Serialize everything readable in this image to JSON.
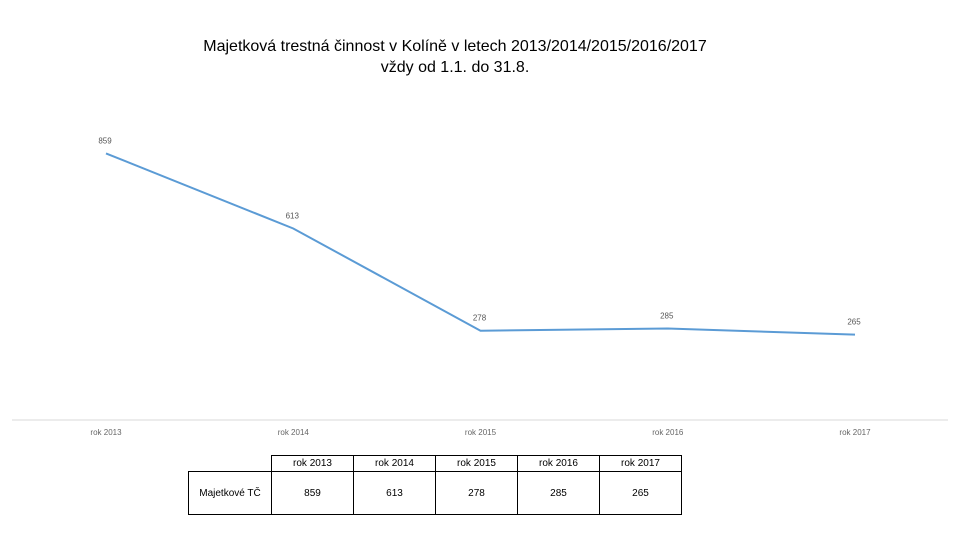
{
  "title": {
    "line1": "Majetková trestná činnost v Kolíně v letech 2013/2014/2015/2016/2017",
    "line2": "vždy od 1.1. do 31.8."
  },
  "colors": {
    "line": "#5b9bd5",
    "axis": "#d9d9d9"
  },
  "chart_data": {
    "type": "line",
    "categories": [
      "rok 2013",
      "rok 2014",
      "rok 2015",
      "rok 2016",
      "rok 2017"
    ],
    "series": [
      {
        "name": "Majetkové TČ",
        "values": [
          859,
          613,
          278,
          285,
          265
        ]
      }
    ],
    "data_labels": true,
    "legend": "none",
    "grid": false
  },
  "table": {
    "headers": [
      "rok 2013",
      "rok 2014",
      "rok 2015",
      "rok 2016",
      "rok 2017"
    ],
    "row_label": "Majetkové TČ",
    "values": [
      "859",
      "613",
      "278",
      "285",
      "265"
    ]
  }
}
